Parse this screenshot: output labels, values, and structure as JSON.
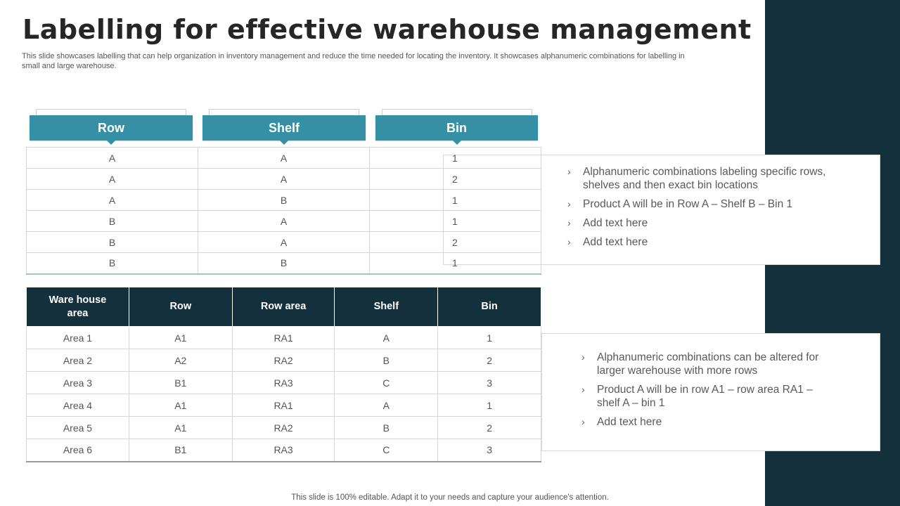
{
  "slide": {
    "title": "Labelling for effective warehouse management",
    "subtitle": "This slide showcases labelling that can help organization in inventory management and reduce the time needed for locating the inventory.  It showcases alphanumeric combinations for labelling in small and large warehouse.",
    "footer": "This slide is 100% editable. Adapt it to your needs and capture your audience's attention."
  },
  "colors": {
    "teal": "#3590a6",
    "navy": "#13303c"
  },
  "label_table": {
    "headers": [
      "Row",
      "Shelf",
      "Bin"
    ],
    "rows": [
      [
        "A",
        "A",
        "1"
      ],
      [
        "A",
        "A",
        "2"
      ],
      [
        "A",
        "B",
        "1"
      ],
      [
        "B",
        "A",
        "1"
      ],
      [
        "B",
        "A",
        "2"
      ],
      [
        "B",
        "B",
        "1"
      ]
    ]
  },
  "callout_top": {
    "bullets": [
      "Alphanumeric combinations labeling specific rows, shelves and then exact bin locations",
      "Product A will be in Row A – Shelf B – Bin 1",
      "Add text here",
      "Add text here"
    ]
  },
  "warehouse_table": {
    "headers": [
      "Ware house area",
      "Row",
      "Row area",
      "Shelf",
      "Bin"
    ],
    "rows": [
      [
        "Area 1",
        "A1",
        "RA1",
        "A",
        "1"
      ],
      [
        "Area 2",
        "A2",
        "RA2",
        "B",
        "2"
      ],
      [
        "Area 3",
        "B1",
        "RA3",
        "C",
        "3"
      ],
      [
        "Area 4",
        "A1",
        "RA1",
        "A",
        "1"
      ],
      [
        "Area 5",
        "A1",
        "RA2",
        "B",
        "2"
      ],
      [
        "Area 6",
        "B1",
        "RA3",
        "C",
        "3"
      ]
    ]
  },
  "callout_bottom": {
    "bullets": [
      "Alphanumeric combinations can be altered for larger warehouse with more rows",
      "Product A will be in row A1 – row area RA1 – shelf A – bin 1",
      "Add text here"
    ]
  }
}
